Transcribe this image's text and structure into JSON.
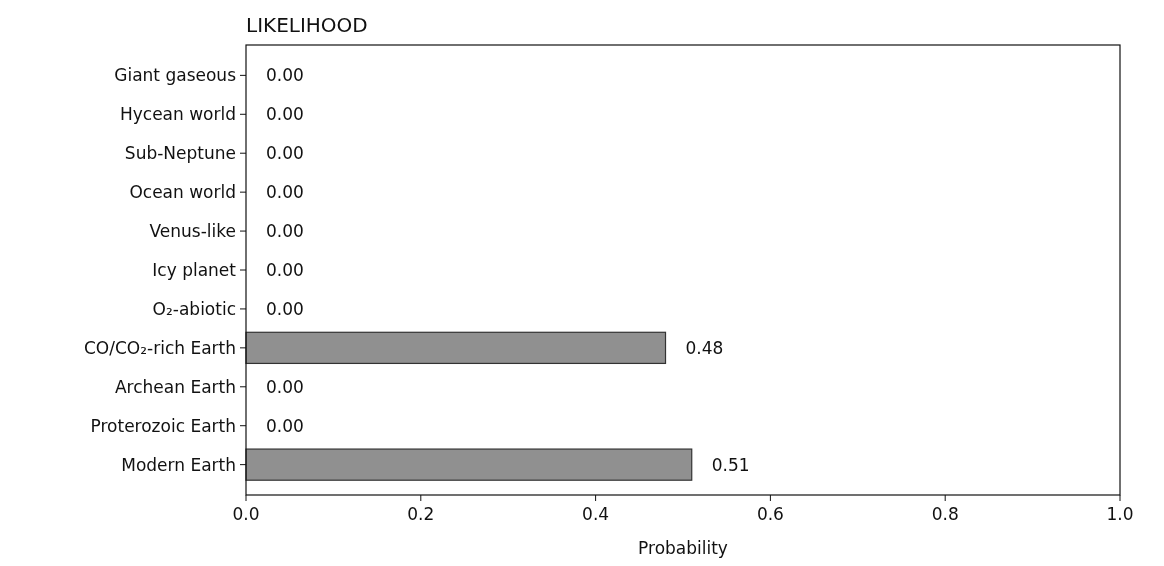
{
  "chart_data": {
    "type": "bar",
    "orientation": "horizontal",
    "title": "LIKELIHOOD",
    "xlabel": "Probability",
    "categories": [
      "Giant gaseous",
      "Hycean world",
      "Sub-Neptune",
      "Ocean world",
      "Venus-like",
      "Icy planet",
      "O₂-abiotic",
      "CO/CO₂-rich Earth",
      "Archean Earth",
      "Proterozoic Earth",
      "Modern Earth"
    ],
    "values": [
      0,
      0,
      0,
      0,
      0,
      0,
      0,
      0.48,
      0,
      0,
      0.51
    ],
    "value_labels": [
      "0.00",
      "0.00",
      "0.00",
      "0.00",
      "0.00",
      "0.00",
      "0.00",
      "0.48",
      "0.00",
      "0.00",
      "0.51"
    ],
    "color": "#909090",
    "xlim": [
      0,
      1
    ],
    "xticks": [
      {
        "value": 0,
        "label": "0.0"
      },
      0.2,
      0.4,
      0.6,
      0.8,
      {
        "value": 1,
        "label": "1.0"
      }
    ]
  }
}
